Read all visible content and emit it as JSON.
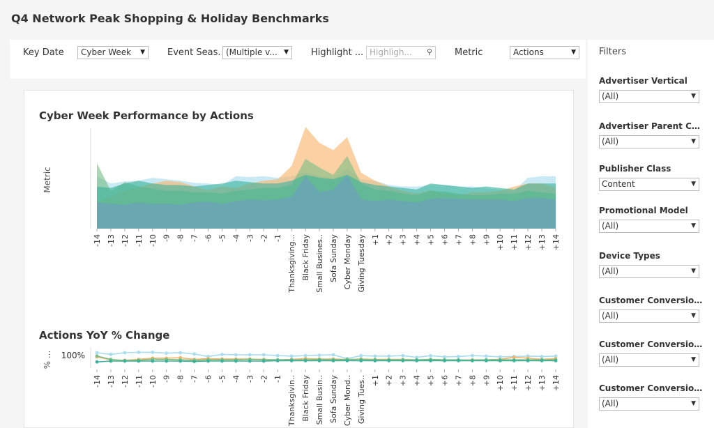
{
  "page": {
    "title": "Q4 Network Peak Shopping & Holiday Benchmarks"
  },
  "toolbar": {
    "key_date_label": "Key Date",
    "key_date_value": "Cyber Week",
    "event_season_label": "Event Seas...",
    "event_season_value": "(Multiple v...",
    "highlight_label": "Highlight ...",
    "highlight_placeholder": "Highligh...",
    "metric_label": "Metric",
    "metric_value": "Actions"
  },
  "filters": {
    "title": "Filters",
    "items": [
      {
        "label": "Advertiser Vertical",
        "value": "(All)"
      },
      {
        "label": "Advertiser Parent Cat...",
        "value": "(All)"
      },
      {
        "label": "Publisher Class",
        "value": "Content"
      },
      {
        "label": "Promotional Model",
        "value": "(All)"
      },
      {
        "label": "Device Types",
        "value": "(All)"
      },
      {
        "label": "Customer Conversion ...",
        "value": "(All)"
      },
      {
        "label": "Customer Conversion ...",
        "value": "(All)"
      },
      {
        "label": "Customer Conversion ...",
        "value": "(All)"
      }
    ]
  },
  "colors": {
    "orange": "#f8b46b",
    "light_blue": "#a8dcef",
    "green": "#7bbd86",
    "teal": "#3bb39b",
    "dark_blue": "#6d9ec2"
  },
  "chart_data": [
    {
      "type": "area",
      "title": "Cyber Week Performance by Actions",
      "xlabel": "",
      "ylabel": "Metric",
      "categories": [
        "-14",
        "-13",
        "-12",
        "-11",
        "-10",
        "-9",
        "-8",
        "-7",
        "-6",
        "-5",
        "-4",
        "-3",
        "-2",
        "-1",
        "Thanksgiving...",
        "Black Friday",
        "Small Busines..",
        "Sofa Sunday",
        "Cyber Monday",
        "Giving Tuesday",
        "+1",
        "+2",
        "+3",
        "+4",
        "+5",
        "+6",
        "+7",
        "+8",
        "+9",
        "+10",
        "+11",
        "+12",
        "+13",
        "+14"
      ],
      "ylim": [
        0,
        140
      ],
      "series": [
        {
          "color": "light_blue",
          "values": [
            72,
            62,
            65,
            66,
            70,
            68,
            66,
            63,
            62,
            60,
            72,
            71,
            72,
            70,
            72,
            78,
            72,
            70,
            82,
            68,
            66,
            60,
            58,
            58,
            60,
            60,
            58,
            58,
            56,
            54,
            52,
            70,
            72,
            72
          ]
        },
        {
          "color": "orange",
          "values": [
            36,
            44,
            52,
            57,
            62,
            66,
            64,
            58,
            53,
            58,
            56,
            62,
            66,
            68,
            86,
            140,
            118,
            108,
            126,
            77,
            66,
            58,
            52,
            48,
            53,
            48,
            46,
            50,
            50,
            52,
            58,
            62,
            62,
            56
          ]
        },
        {
          "color": "green",
          "values": [
            90,
            52,
            64,
            58,
            55,
            52,
            52,
            50,
            50,
            48,
            52,
            54,
            56,
            56,
            60,
            96,
            84,
            74,
            100,
            62,
            54,
            52,
            48,
            46,
            52,
            51,
            48,
            46,
            46,
            48,
            48,
            52,
            50,
            48
          ]
        },
        {
          "color": "teal",
          "values": [
            58,
            56,
            62,
            66,
            62,
            60,
            60,
            58,
            60,
            62,
            66,
            64,
            62,
            62,
            66,
            74,
            70,
            68,
            74,
            64,
            60,
            58,
            56,
            54,
            62,
            60,
            58,
            56,
            58,
            56,
            54,
            62,
            62,
            62
          ]
        },
        {
          "color": "dark_blue",
          "values": [
            36,
            34,
            33,
            36,
            34,
            34,
            33,
            36,
            37,
            34,
            38,
            40,
            39,
            40,
            44,
            72,
            50,
            54,
            74,
            40,
            38,
            40,
            38,
            36,
            41,
            42,
            41,
            40,
            40,
            40,
            38,
            42,
            42,
            40
          ]
        }
      ]
    },
    {
      "type": "line",
      "title": "Actions YoY % Change",
      "ylabel": "% ...",
      "ytick": "100%",
      "categories": [
        "-14",
        "-13",
        "-12",
        "-11",
        "-10",
        "-9",
        "-8",
        "-7",
        "-6",
        "-5",
        "-4",
        "-3",
        "-2",
        "-1",
        "Thanksgivin..",
        "Black Friday",
        "Small Busin..",
        "Sofa Sunday",
        "Cyber Mond..",
        "Giving Tues..",
        "+1",
        "+2",
        "+3",
        "+4",
        "+5",
        "+6",
        "+7",
        "+8",
        "+9",
        "+10",
        "+11",
        "+12",
        "+13",
        "+14"
      ],
      "ylim": [
        -10,
        30
      ],
      "series": [
        {
          "color": "light_blue",
          "values": [
            20,
            16,
            20,
            21,
            21,
            19,
            20,
            17,
            11,
            16,
            15,
            15,
            15,
            13,
            12,
            13,
            14,
            15,
            6,
            13,
            12,
            12,
            13,
            9,
            13,
            10,
            11,
            13,
            12,
            10,
            11,
            12,
            11,
            12
          ]
        },
        {
          "color": "orange",
          "values": [
            10,
            3,
            2,
            4,
            7,
            7,
            8,
            4,
            6,
            5,
            5,
            5,
            4,
            3,
            4,
            6,
            5,
            5,
            4,
            5,
            4,
            4,
            4,
            3,
            3,
            3,
            2,
            3,
            3,
            4,
            9,
            7,
            4,
            6
          ]
        },
        {
          "color": "green",
          "values": [
            12,
            4,
            1,
            2,
            4,
            4,
            3,
            2,
            3,
            3,
            3,
            4,
            3,
            3,
            3,
            3,
            4,
            3,
            4,
            4,
            3,
            3,
            3,
            3,
            4,
            3,
            3,
            2,
            3,
            3,
            3,
            3,
            3,
            3
          ]
        },
        {
          "color": "teal",
          "values": [
            -2,
            0,
            0,
            0,
            0,
            0,
            0,
            -1,
            0,
            0,
            0,
            0,
            0,
            1,
            1,
            1,
            1,
            1,
            1,
            1,
            1,
            1,
            1,
            1,
            1,
            1,
            1,
            1,
            1,
            1,
            1,
            1,
            1,
            1
          ]
        }
      ]
    }
  ]
}
